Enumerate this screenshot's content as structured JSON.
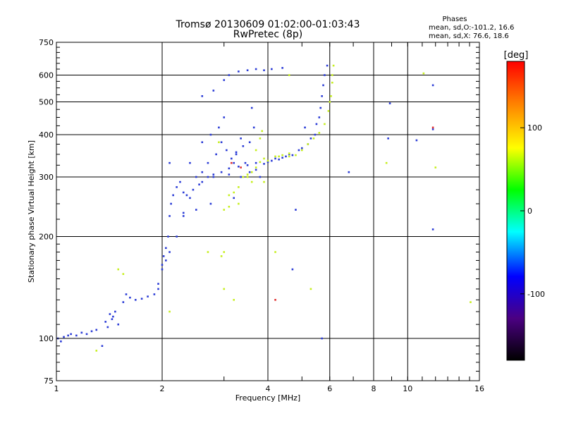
{
  "chart_data": {
    "type": "scatter",
    "title": "Tromsø 20130609 01:02:00-01:03:43",
    "subtitle": "RwPretec (8p)",
    "xlabel": "Frequency [MHz]",
    "ylabel": "Stationary phase Virtual Height [km]",
    "x_scale": "log",
    "y_scale": "log",
    "xlim": [
      1,
      16
    ],
    "ylim": [
      75,
      750
    ],
    "x_ticks": [
      1,
      2,
      4,
      6,
      8,
      10,
      16
    ],
    "y_ticks": [
      75,
      100,
      200,
      300,
      400,
      500,
      600,
      750
    ],
    "grid": true,
    "phase_info": {
      "title": "Phases",
      "line_o": "mean, sd,O:-101.2, 16.6",
      "line_x": "mean, sd,X:  76.6, 18.6"
    },
    "colorbar": {
      "label": "[deg]",
      "range": [
        -180,
        180
      ],
      "ticks": [
        100,
        0,
        -100
      ],
      "colors": [
        "#000000",
        "#4b0082",
        "#0000ff",
        "#00ffff",
        "#00ff00",
        "#ffff00",
        "#ff8000",
        "#ff0000"
      ]
    },
    "series": [
      {
        "mode": "O",
        "color": "#2a3bd6",
        "points": [
          [
            1.01,
            100
          ],
          [
            1.03,
            98
          ],
          [
            1.05,
            101
          ],
          [
            1.08,
            102
          ],
          [
            1.1,
            103
          ],
          [
            1.14,
            102
          ],
          [
            1.18,
            104
          ],
          [
            1.22,
            103
          ],
          [
            1.26,
            105
          ],
          [
            1.3,
            106
          ],
          [
            1.38,
            112
          ],
          [
            1.42,
            118
          ],
          [
            1.44,
            114
          ],
          [
            1.47,
            120
          ],
          [
            1.55,
            128
          ],
          [
            1.58,
            135
          ],
          [
            1.62,
            132
          ],
          [
            1.68,
            130
          ],
          [
            1.75,
            131
          ],
          [
            1.82,
            133
          ],
          [
            1.9,
            135
          ],
          [
            1.95,
            140
          ],
          [
            2.0,
            165
          ],
          [
            2.02,
            175
          ],
          [
            2.05,
            185
          ],
          [
            2.08,
            200
          ],
          [
            2.1,
            230
          ],
          [
            2.12,
            250
          ],
          [
            2.15,
            265
          ],
          [
            2.2,
            280
          ],
          [
            2.25,
            290
          ],
          [
            2.3,
            270
          ],
          [
            2.35,
            265
          ],
          [
            2.45,
            275
          ],
          [
            2.55,
            285
          ],
          [
            2.6,
            290
          ],
          [
            2.7,
            300
          ],
          [
            2.8,
            305
          ],
          [
            2.95,
            310
          ],
          [
            3.1,
            318
          ],
          [
            3.3,
            322
          ],
          [
            3.5,
            325
          ],
          [
            3.7,
            330
          ],
          [
            3.9,
            328
          ],
          [
            4.1,
            335
          ],
          [
            4.3,
            338
          ],
          [
            4.6,
            350
          ],
          [
            4.9,
            360
          ],
          [
            5.2,
            375
          ],
          [
            5.45,
            400
          ],
          [
            5.6,
            450
          ],
          [
            5.7,
            520
          ],
          [
            5.8,
            600
          ],
          [
            5.9,
            640
          ],
          [
            2.6,
            520
          ],
          [
            2.8,
            540
          ],
          [
            3.0,
            580
          ],
          [
            3.1,
            600
          ],
          [
            3.3,
            615
          ],
          [
            3.5,
            620
          ],
          [
            3.7,
            625
          ],
          [
            3.9,
            620
          ],
          [
            4.1,
            625
          ],
          [
            4.4,
            630
          ],
          [
            2.7,
            330
          ],
          [
            2.85,
            350
          ],
          [
            2.95,
            380
          ],
          [
            3.05,
            360
          ],
          [
            3.15,
            340
          ],
          [
            3.25,
            350
          ],
          [
            3.4,
            370
          ],
          [
            3.55,
            380
          ],
          [
            3.65,
            420
          ],
          [
            3.6,
            480
          ],
          [
            3.0,
            450
          ],
          [
            2.9,
            420
          ],
          [
            2.75,
            400
          ],
          [
            2.6,
            380
          ],
          [
            2.5,
            300
          ],
          [
            2.4,
            260
          ],
          [
            2.3,
            230
          ],
          [
            2.2,
            200
          ],
          [
            2.1,
            180
          ],
          [
            2.05,
            170
          ],
          [
            2.0,
            160
          ],
          [
            1.95,
            145
          ],
          [
            1.4,
            108
          ],
          [
            1.45,
            116
          ],
          [
            1.5,
            110
          ],
          [
            1.35,
            95
          ],
          [
            5.7,
            100
          ],
          [
            4.7,
            160
          ],
          [
            4.8,
            240
          ],
          [
            3.8,
            300
          ],
          [
            5.1,
            420
          ],
          [
            6.8,
            310
          ],
          [
            8.8,
            390
          ],
          [
            8.9,
            495
          ],
          [
            10.6,
            385
          ],
          [
            11.8,
            210
          ],
          [
            11.8,
            415
          ],
          [
            11.8,
            560
          ],
          [
            2.1,
            330
          ],
          [
            2.4,
            330
          ],
          [
            2.3,
            235
          ],
          [
            2.5,
            240
          ],
          [
            2.6,
            310
          ],
          [
            2.75,
            250
          ],
          [
            2.8,
            300
          ],
          [
            3.2,
            260
          ],
          [
            3.35,
            300
          ],
          [
            3.1,
            305
          ],
          [
            3.2,
            330
          ],
          [
            3.25,
            355
          ],
          [
            3.35,
            390
          ],
          [
            3.45,
            330
          ],
          [
            3.55,
            310
          ],
          [
            3.7,
            315
          ],
          [
            4.0,
            332
          ],
          [
            4.2,
            340
          ],
          [
            4.4,
            342
          ],
          [
            4.5,
            345
          ],
          [
            4.7,
            348
          ],
          [
            5.0,
            365
          ],
          [
            5.3,
            390
          ],
          [
            5.5,
            430
          ],
          [
            5.65,
            480
          ],
          [
            5.75,
            560
          ]
        ]
      },
      {
        "mode": "X",
        "color": "#c6ef1e",
        "points": [
          [
            3.1,
            265
          ],
          [
            3.2,
            270
          ],
          [
            3.3,
            280
          ],
          [
            3.4,
            300
          ],
          [
            3.5,
            305
          ],
          [
            3.6,
            310
          ],
          [
            3.7,
            320
          ],
          [
            3.8,
            332
          ],
          [
            3.9,
            340
          ],
          [
            4.0,
            335
          ],
          [
            4.2,
            345
          ],
          [
            4.4,
            348
          ],
          [
            4.6,
            352
          ],
          [
            4.8,
            348
          ],
          [
            5.0,
            360
          ],
          [
            5.2,
            375
          ],
          [
            5.4,
            390
          ],
          [
            5.6,
            405
          ],
          [
            5.8,
            430
          ],
          [
            5.95,
            470
          ],
          [
            6.05,
            520
          ],
          [
            6.1,
            570
          ],
          [
            6.15,
            640
          ],
          [
            6.1,
            600
          ],
          [
            6.0,
            500
          ],
          [
            3.8,
            390
          ],
          [
            3.85,
            410
          ],
          [
            3.7,
            360
          ],
          [
            3.6,
            290
          ],
          [
            3.3,
            250
          ],
          [
            3.1,
            245
          ],
          [
            3.0,
            240
          ],
          [
            2.95,
            175
          ],
          [
            3.0,
            180
          ],
          [
            3.5,
            300
          ],
          [
            3.9,
            290
          ],
          [
            4.3,
            345
          ],
          [
            4.6,
            345
          ],
          [
            5.3,
            140
          ],
          [
            2.9,
            380
          ],
          [
            1.5,
            160
          ],
          [
            1.55,
            155
          ],
          [
            1.3,
            92
          ],
          [
            2.1,
            120
          ],
          [
            4.2,
            180
          ],
          [
            4.6,
            600
          ],
          [
            8.7,
            330
          ],
          [
            11.1,
            607
          ],
          [
            12.0,
            320
          ],
          [
            15.1,
            128
          ],
          [
            2.7,
            180
          ],
          [
            3.0,
            140
          ],
          [
            3.2,
            130
          ]
        ]
      },
      {
        "mode": "other",
        "color": "#e03030",
        "points": [
          [
            4.2,
            130
          ],
          [
            11.8,
            420
          ],
          [
            3.15,
            330
          ],
          [
            3.35,
            320
          ]
        ]
      }
    ]
  }
}
